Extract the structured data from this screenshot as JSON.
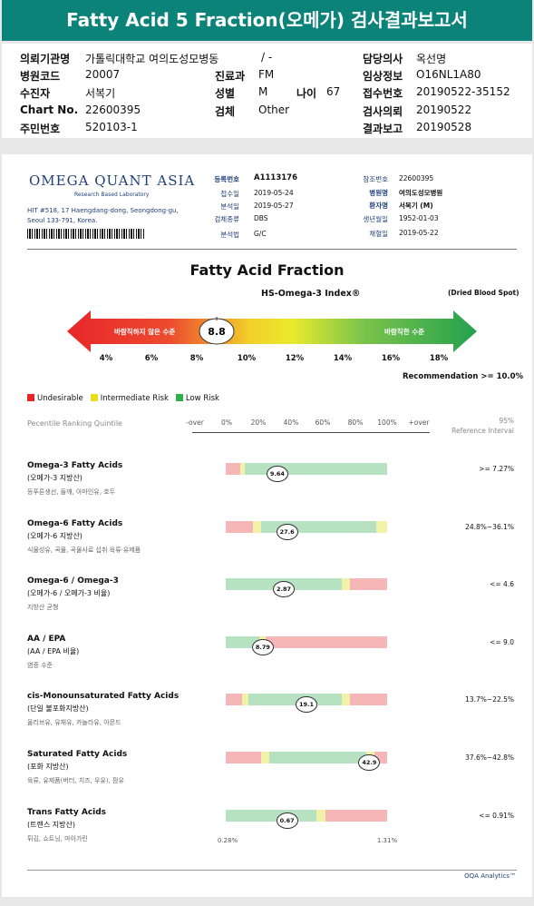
{
  "report_title": "Fatty Acid 5 Fraction(오메가) 검사결과보고서",
  "patient": {
    "institution_label": "의뢰기관명",
    "institution": "가톨릭대학교 여의도성모병동",
    "ward_sep": "/ -",
    "doctor_label": "담당의사",
    "doctor": "옥선명",
    "hospital_code_label": "병원코드",
    "hospital_code": "20007",
    "dept_label": "진료과",
    "dept": "FM",
    "clinical_label": "임상정보",
    "clinical": "O16NL1A80",
    "patient_label": "수진자",
    "patient_name": "서복기",
    "sex_label": "성별",
    "sex": "M",
    "age_label": "나이",
    "age": "67",
    "receipt_label": "접수번호",
    "receipt": "20190522-35152",
    "chart_label": "Chart No.",
    "chart_no": "22600395",
    "specimen_label": "검체",
    "specimen": "Other",
    "request_label": "검사의뢰",
    "request_date": "20190522",
    "id_label": "주민번호",
    "id_no": "520103-1",
    "report_label": "결과보고",
    "report_date": "20190528"
  },
  "lab": {
    "logo": "OMEGA QUANT ASIA",
    "tagline": "Research Based Laboratory",
    "address": "HIT #518, 17 Haengdang-dong, Seongdong-gu, Seoul 133-791, Korea."
  },
  "header": {
    "reg_no_label": "등록번호",
    "reg_no": "A1113176",
    "received_label": "접수일",
    "received": "2019-05-24",
    "analyzed_label": "분석일",
    "analyzed": "2019-05-27",
    "sample_type_label": "검체종류",
    "sample_type": "DBS",
    "method_label": "분석법",
    "method": "G/C",
    "ref_no_label": "참조번호",
    "ref_no": "22600395",
    "hospital_label": "병원명",
    "hospital": "여의도성모병원",
    "patient_label": "환자명",
    "patient": "서복기 (M)",
    "dob_label": "생년월일",
    "dob": "1952-01-03",
    "collected_label": "채혈일",
    "collected": "2019-05-22"
  },
  "index_chart": {
    "title": "Fatty Acid Fraction",
    "subtitle": "HS-Omega-3 Index®",
    "sample_note": "(Dried Blood Spot)",
    "left_label": "바람직하지 않은 수준",
    "right_label": "바람직한 수준",
    "value": 8.8,
    "value_label": "8.8",
    "ticks": [
      {
        "label": "4%",
        "v": 4
      },
      {
        "label": "6%",
        "v": 6
      },
      {
        "label": "8%",
        "v": 8
      },
      {
        "label": "10%",
        "v": 10
      },
      {
        "label": "12%",
        "v": 12
      },
      {
        "label": "14%",
        "v": 14
      },
      {
        "label": "16%",
        "v": 16
      },
      {
        "label": "18%",
        "v": 18
      }
    ],
    "recommendation": "Recommendation  >= 10.0%"
  },
  "legend": {
    "undesirable": "Undesirable",
    "intermediate": "Intermediate Risk",
    "low": "Low Risk",
    "colors": {
      "undesirable": "#e8262a",
      "intermediate": "#e6e01a",
      "low": "#2fae4e"
    }
  },
  "percentile": {
    "heading": "Pecentile Ranking Quintile",
    "axis": [
      "-over",
      "0%",
      "20%",
      "40%",
      "60%",
      "80%",
      "100%",
      "+over"
    ],
    "ref_heading_1": "95%",
    "ref_heading_2": "Reference Interval",
    "bottom_left": "0.28%",
    "bottom_right": "1.31%"
  },
  "chart_data": {
    "type": "table",
    "rows": [
      {
        "name": "Omega-3 Fatty Acids",
        "kor": "(오메가-3 지방산)",
        "desc": "등푸른생선, 들깨, 아마인유, 호두",
        "value": "9.64",
        "percentile": 32,
        "ref": ">= 7.27%",
        "segments": [
          [
            "#f4b6b6",
            9
          ],
          [
            "#f1f1a8",
            3
          ],
          [
            "#b7e2c2",
            88
          ]
        ]
      },
      {
        "name": "Omega-6 Fatty Acids",
        "kor": "(오메가-6 지방산)",
        "desc": "식물성유, 곡물, 곡물사료 섭취 육류·유제품",
        "value": "27.6",
        "percentile": 38,
        "ref": "24.8%~36.1%",
        "segments": [
          [
            "#f4b6b6",
            17
          ],
          [
            "#f1f1a8",
            5
          ],
          [
            "#b7e2c2",
            71
          ],
          [
            "#f1f1a8",
            7
          ]
        ]
      },
      {
        "name": "Omega-6 / Omega-3",
        "kor": "(오메가-6 / 오메가-3 비율)",
        "desc": "지방산 균형",
        "value": "2.87",
        "percentile": 36,
        "ref": "<= 4.6",
        "segments": [
          [
            "#b7e2c2",
            72
          ],
          [
            "#f1f1a8",
            5
          ],
          [
            "#f4b6b6",
            23
          ]
        ]
      },
      {
        "name": "AA / EPA",
        "kor": "(AA / EPA 비율)",
        "desc": "염증 수준",
        "value": "8.79",
        "percentile": 23,
        "ref": "<= 9.0",
        "segments": [
          [
            "#b7e2c2",
            21
          ],
          [
            "#f1f1a8",
            4
          ],
          [
            "#f4b6b6",
            75
          ]
        ]
      },
      {
        "name": "cis-Monounsaturated Fatty Acids",
        "kor": "(단일 불포화지방산)",
        "desc": "올리브유, 유채유, 카놀라유, 아몬드",
        "value": "19.1",
        "percentile": 50,
        "ref": "13.7%~22.5%",
        "segments": [
          [
            "#f4b6b6",
            10
          ],
          [
            "#f1f1a8",
            4
          ],
          [
            "#b7e2c2",
            58
          ],
          [
            "#f1f1a8",
            5
          ],
          [
            "#f4b6b6",
            23
          ]
        ]
      },
      {
        "name": "Saturated Fatty Acids",
        "kor": "(포화 지방산)",
        "desc": "육류, 유제품(버터, 치즈, 우유), 팜유",
        "value": "42.9",
        "percentile": 89,
        "ref": "37.6%~42.8%",
        "segments": [
          [
            "#f4b6b6",
            22
          ],
          [
            "#f1f1a8",
            5
          ],
          [
            "#b7e2c2",
            60
          ],
          [
            "#f1f1a8",
            5
          ],
          [
            "#f4b6b6",
            8
          ]
        ]
      },
      {
        "name": "Trans Fatty Acids",
        "kor": "(트랜스 지방산)",
        "desc": "튀김, 쇼트닝, 마아가린",
        "value": "0.67",
        "percentile": 38,
        "ref": "<= 0.91%",
        "segments": [
          [
            "#b7e2c2",
            56
          ],
          [
            "#f1f1a8",
            6
          ],
          [
            "#f4b6b6",
            38
          ]
        ]
      }
    ]
  },
  "footer": "OQA Analytics™"
}
